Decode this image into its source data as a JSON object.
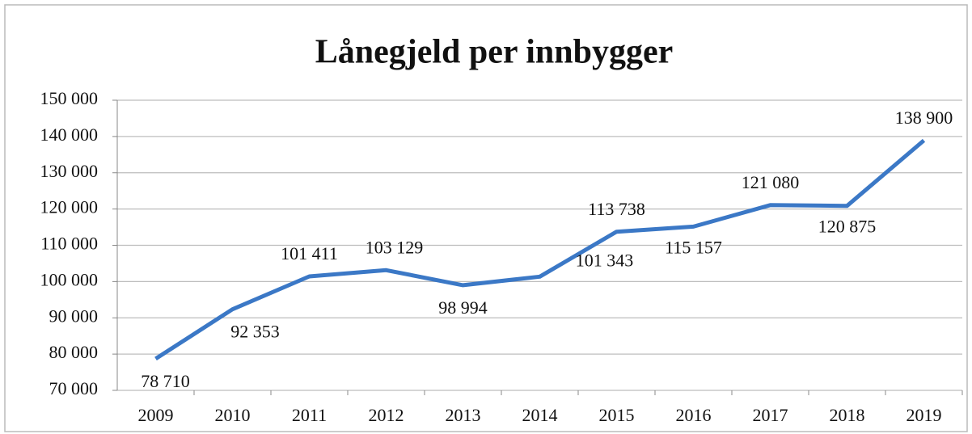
{
  "chart_data": {
    "type": "line",
    "title": "Lånegjeld per innbygger",
    "categories": [
      "2009",
      "2010",
      "2011",
      "2012",
      "2013",
      "2014",
      "2015",
      "2016",
      "2017",
      "2018",
      "2019"
    ],
    "series": [
      {
        "name": "Lånegjeld per innbygger",
        "color": "#3b78c6",
        "values": [
          78710,
          92353,
          101411,
          103129,
          98994,
          101343,
          113738,
          115157,
          121080,
          120875,
          138900
        ],
        "value_labels": [
          "78 710",
          "92 353",
          "101 411",
          "103 129",
          "98 994",
          "101 343",
          "113 738",
          "115 157",
          "121 080",
          "120 875",
          "138 900"
        ]
      }
    ],
    "ylim": [
      70000,
      150000
    ],
    "yticks": [
      {
        "value": 70000,
        "label": "70 000"
      },
      {
        "value": 80000,
        "label": "80 000"
      },
      {
        "value": 90000,
        "label": "90 000"
      },
      {
        "value": 100000,
        "label": "100 000"
      },
      {
        "value": 110000,
        "label": "110 000"
      },
      {
        "value": 120000,
        "label": "120 000"
      },
      {
        "value": 130000,
        "label": "130 000"
      },
      {
        "value": 140000,
        "label": "140 000"
      },
      {
        "value": 150000,
        "label": "150 000"
      }
    ],
    "grid": true
  }
}
